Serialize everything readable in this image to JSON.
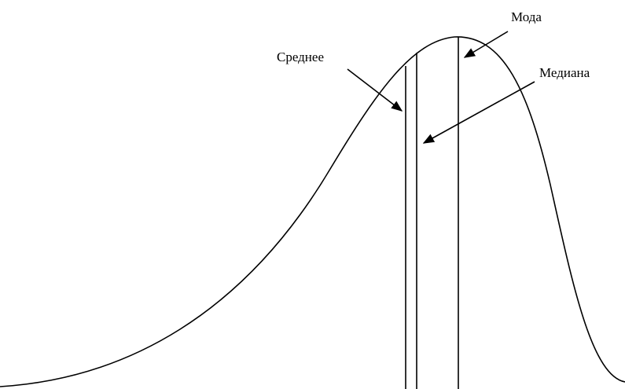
{
  "labels": {
    "mean": "Среднее",
    "mode": "Мода",
    "median": "Медиана"
  }
}
